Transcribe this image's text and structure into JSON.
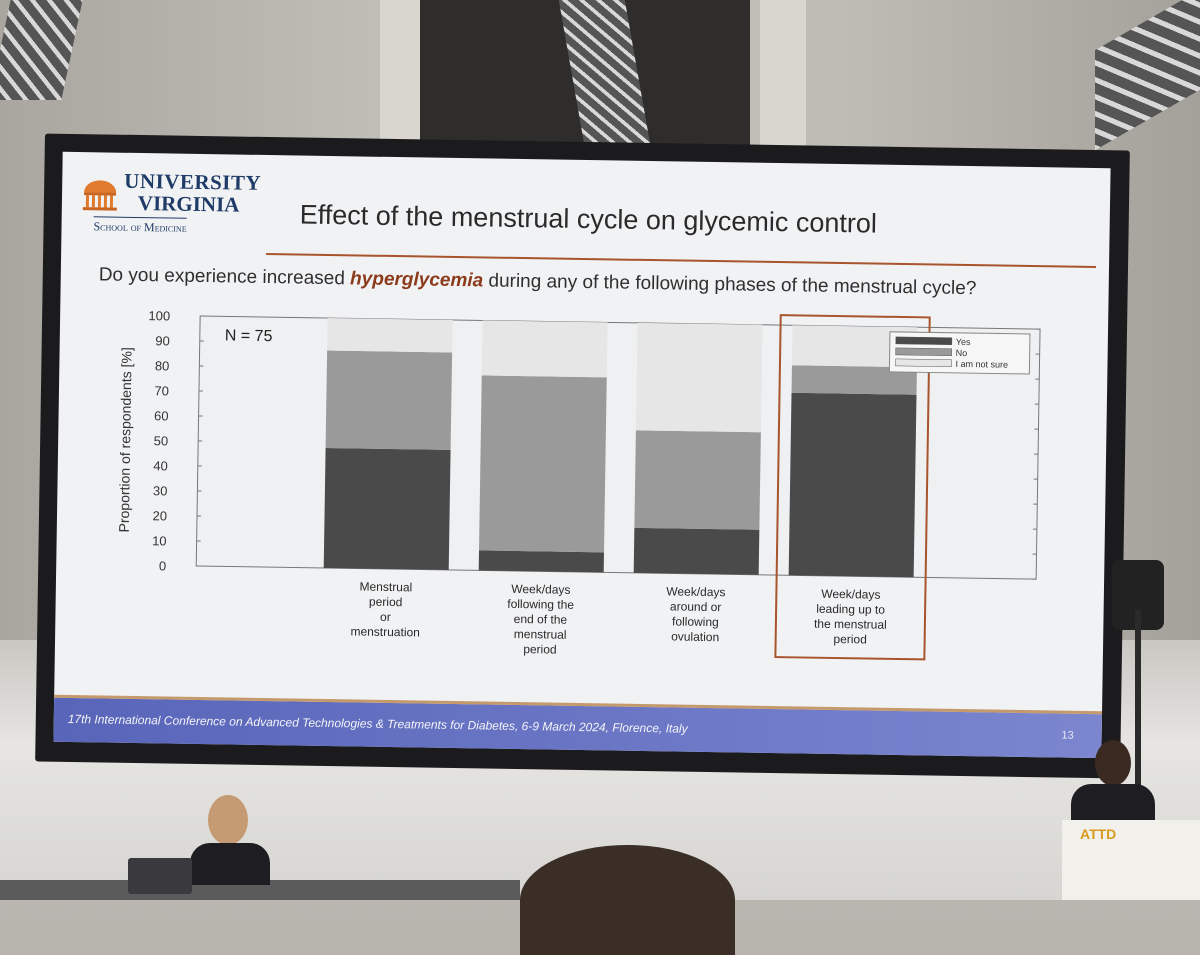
{
  "slide": {
    "logo": {
      "line1": "UNIVERSITY",
      "line2": "VIRGINIA",
      "line3": "School of Medicine"
    },
    "title": "Effect of the menstrual cycle on glycemic control",
    "question_prefix": "Do you experience increased ",
    "question_emphasis": "hyperglycemia",
    "question_suffix": " during any of the following phases of the menstrual cycle?",
    "footer": "17th International Conference on Advanced Technologies & Treatments for Diabetes, 6-9 March 2024, Florence, Italy",
    "slide_number": "13",
    "podium_logo": "ATTD"
  },
  "chart_data": {
    "type": "bar",
    "stacked": true,
    "annotation": "N = 75",
    "ylabel": "Proportion of respondents [%]",
    "ylim": [
      0,
      100
    ],
    "yticks": [
      "0",
      "10",
      "20",
      "30",
      "40",
      "50",
      "60",
      "70",
      "80",
      "90",
      "100"
    ],
    "categories": [
      [
        "Menstrual",
        "period",
        "or",
        "menstruation"
      ],
      [
        "Week/days",
        "following the",
        "end of the",
        "menstrual",
        "period"
      ],
      [
        "Week/days",
        "around or",
        "following",
        "ovulation"
      ],
      [
        "Week/days",
        "leading up to",
        "the menstrual",
        "period"
      ]
    ],
    "series": [
      {
        "name": "Yes",
        "color": "#4a4a4a",
        "values": [
          48,
          8,
          18,
          73
        ]
      },
      {
        "name": "No",
        "color": "#9a9a9a",
        "values": [
          39,
          70,
          39,
          11
        ]
      },
      {
        "name": "I am not sure",
        "color": "#e6e6e6",
        "values": [
          13,
          22,
          43,
          16
        ]
      }
    ],
    "highlighted_category_index": 3,
    "highlight_color": "#a8542c",
    "legend_position": "top-right"
  }
}
